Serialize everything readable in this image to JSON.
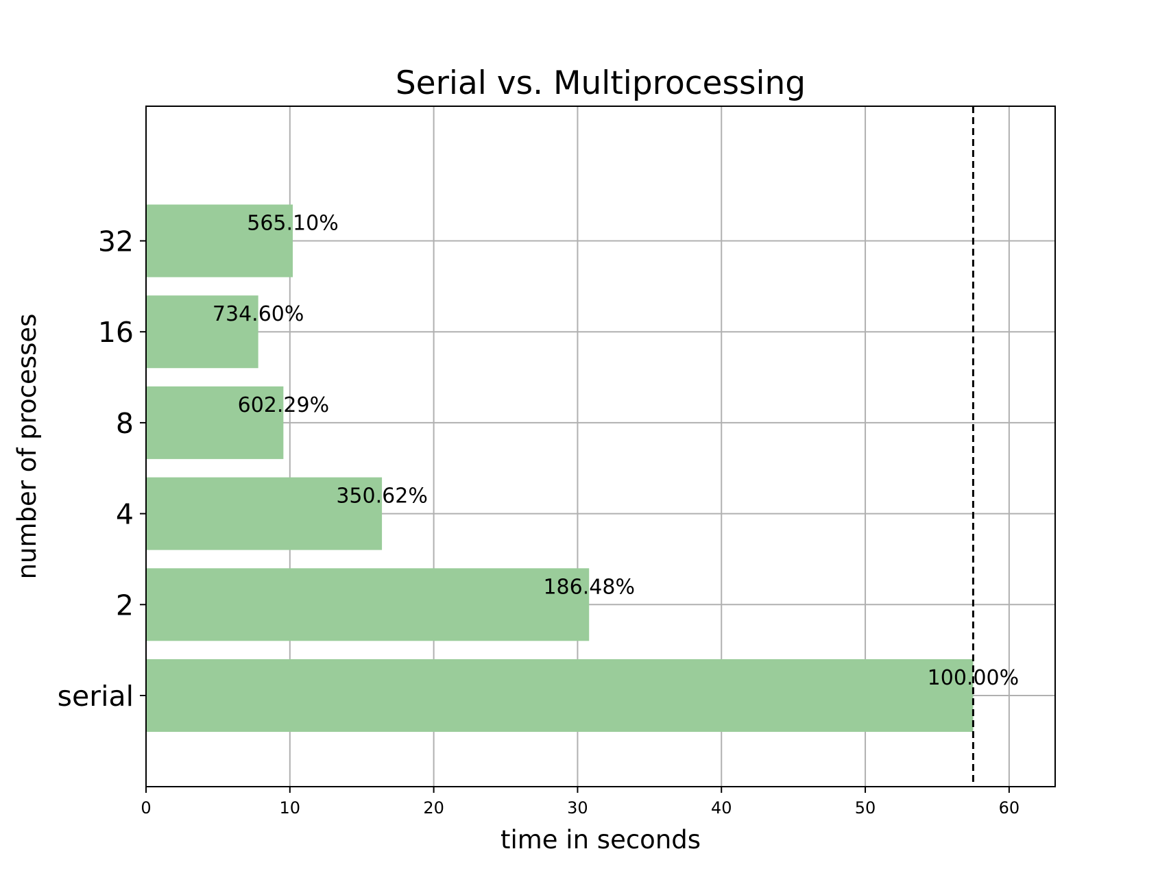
{
  "chart_data": {
    "type": "bar",
    "orientation": "horizontal",
    "title": "Serial vs. Multiprocessing",
    "xlabel": "time in seconds",
    "ylabel": "number of processes",
    "categories": [
      "serial",
      "2",
      "4",
      "8",
      "16",
      "32"
    ],
    "values": [
      57.5,
      30.8,
      16.4,
      9.55,
      7.8,
      10.2
    ],
    "labels": [
      "100.00%",
      "186.48%",
      "350.62%",
      "602.29%",
      "734.60%",
      "565.10%"
    ],
    "xlim": [
      0,
      63.2
    ],
    "xticks": [
      0,
      10,
      20,
      30,
      40,
      50,
      60
    ],
    "reference_line": {
      "x": 57.5,
      "style": "dashed",
      "color": "#000000"
    },
    "bar_color": "#9acc9a",
    "grid": true
  }
}
